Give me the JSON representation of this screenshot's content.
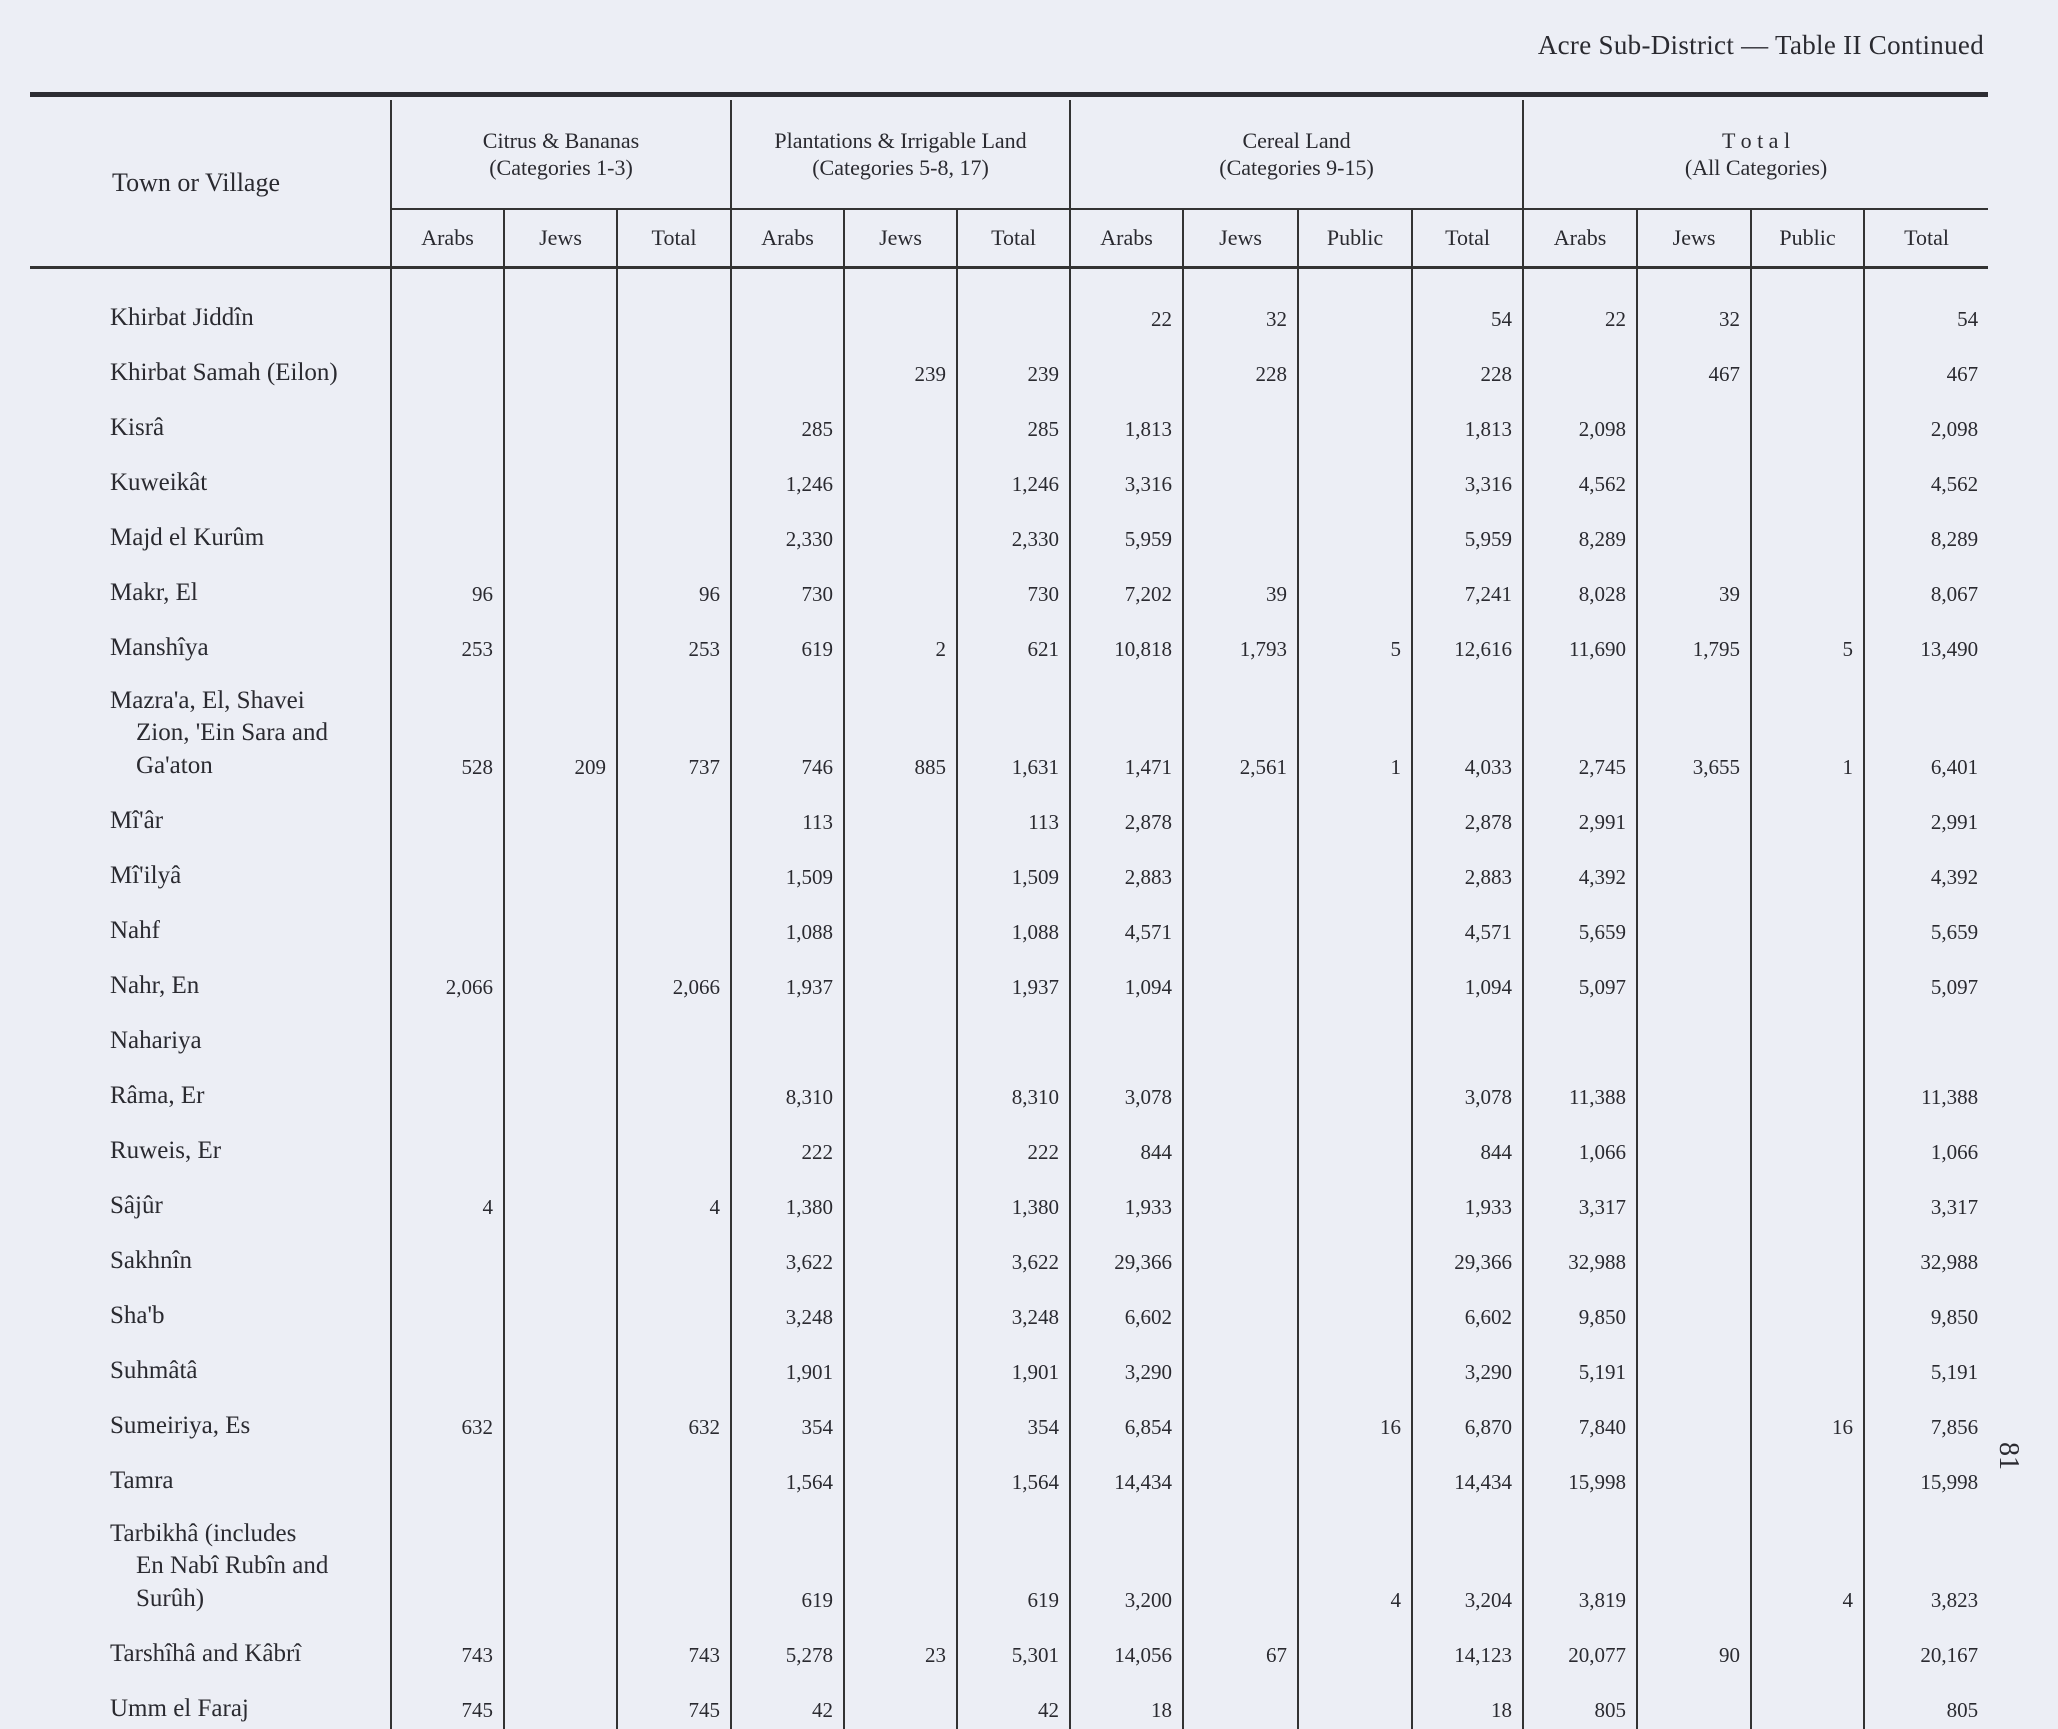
{
  "running_head": "Acre Sub-District — Table II Continued",
  "page_number": "81",
  "header": {
    "first_column": "Town or Village",
    "groups": [
      {
        "title": "Citrus & Bananas",
        "subtitle": "(Categories 1-3)",
        "columns": [
          "Arabs",
          "Jews",
          "Total"
        ]
      },
      {
        "title": "Plantations & Irrigable Land",
        "subtitle": "(Categories 5-8, 17)",
        "columns": [
          "Arabs",
          "Jews",
          "Total"
        ]
      },
      {
        "title": "Cereal Land",
        "subtitle": "(Categories 9-15)",
        "columns": [
          "Arabs",
          "Jews",
          "Public",
          "Total"
        ]
      },
      {
        "title": "T o t a l",
        "subtitle": "(All Categories)",
        "columns": [
          "Arabs",
          "Jews",
          "Public",
          "Total"
        ]
      }
    ]
  },
  "rows": [
    {
      "name": [
        "Khirbat Jiddîn"
      ],
      "values": [
        "",
        "",
        "",
        "",
        "",
        "",
        "22",
        "32",
        "",
        "54",
        "22",
        "32",
        "",
        "54"
      ]
    },
    {
      "name": [
        "Khirbat Samah (Eilon)"
      ],
      "values": [
        "",
        "",
        "",
        "",
        "239",
        "239",
        "",
        "228",
        "",
        "228",
        "",
        "467",
        "",
        "467"
      ]
    },
    {
      "name": [
        "Kisrâ"
      ],
      "values": [
        "",
        "",
        "",
        "285",
        "",
        "285",
        "1,813",
        "",
        "",
        "1,813",
        "2,098",
        "",
        "",
        "2,098"
      ]
    },
    {
      "name": [
        "Kuweikât"
      ],
      "values": [
        "",
        "",
        "",
        "1,246",
        "",
        "1,246",
        "3,316",
        "",
        "",
        "3,316",
        "4,562",
        "",
        "",
        "4,562"
      ]
    },
    {
      "name": [
        "Majd el Kurûm"
      ],
      "values": [
        "",
        "",
        "",
        "2,330",
        "",
        "2,330",
        "5,959",
        "",
        "",
        "5,959",
        "8,289",
        "",
        "",
        "8,289"
      ]
    },
    {
      "name": [
        "Makr, El"
      ],
      "values": [
        "96",
        "",
        "96",
        "730",
        "",
        "730",
        "7,202",
        "39",
        "",
        "7,241",
        "8,028",
        "39",
        "",
        "8,067"
      ]
    },
    {
      "name": [
        "Manshîya"
      ],
      "values": [
        "253",
        "",
        "253",
        "619",
        "2",
        "621",
        "10,818",
        "1,793",
        "5",
        "12,616",
        "11,690",
        "1,795",
        "5",
        "13,490"
      ]
    },
    {
      "name": [
        "Mazra'a, El, Shavei",
        "Zion, 'Ein Sara and",
        "Ga'aton"
      ],
      "values": [
        "528",
        "209",
        "737",
        "746",
        "885",
        "1,631",
        "1,471",
        "2,561",
        "1",
        "4,033",
        "2,745",
        "3,655",
        "1",
        "6,401"
      ]
    },
    {
      "name": [
        "Mî'âr"
      ],
      "values": [
        "",
        "",
        "",
        "113",
        "",
        "113",
        "2,878",
        "",
        "",
        "2,878",
        "2,991",
        "",
        "",
        "2,991"
      ]
    },
    {
      "name": [
        "Mî'ilyâ"
      ],
      "values": [
        "",
        "",
        "",
        "1,509",
        "",
        "1,509",
        "2,883",
        "",
        "",
        "2,883",
        "4,392",
        "",
        "",
        "4,392"
      ]
    },
    {
      "name": [
        "Nahf"
      ],
      "values": [
        "",
        "",
        "",
        "1,088",
        "",
        "1,088",
        "4,571",
        "",
        "",
        "4,571",
        "5,659",
        "",
        "",
        "5,659"
      ]
    },
    {
      "name": [
        "Nahr, En"
      ],
      "values": [
        "2,066",
        "",
        "2,066",
        "1,937",
        "",
        "1,937",
        "1,094",
        "",
        "",
        "1,094",
        "5,097",
        "",
        "",
        "5,097"
      ]
    },
    {
      "name": [
        "Nahariya"
      ],
      "values": [
        "",
        "",
        "",
        "",
        "",
        "",
        "",
        "",
        "",
        "",
        "",
        "",
        "",
        ""
      ]
    },
    {
      "name": [
        "Râma, Er"
      ],
      "values": [
        "",
        "",
        "",
        "8,310",
        "",
        "8,310",
        "3,078",
        "",
        "",
        "3,078",
        "11,388",
        "",
        "",
        "11,388"
      ]
    },
    {
      "name": [
        "Ruweis, Er"
      ],
      "values": [
        "",
        "",
        "",
        "222",
        "",
        "222",
        "844",
        "",
        "",
        "844",
        "1,066",
        "",
        "",
        "1,066"
      ]
    },
    {
      "name": [
        "Sâjûr"
      ],
      "values": [
        "4",
        "",
        "4",
        "1,380",
        "",
        "1,380",
        "1,933",
        "",
        "",
        "1,933",
        "3,317",
        "",
        "",
        "3,317"
      ]
    },
    {
      "name": [
        "Sakhnîn"
      ],
      "values": [
        "",
        "",
        "",
        "3,622",
        "",
        "3,622",
        "29,366",
        "",
        "",
        "29,366",
        "32,988",
        "",
        "",
        "32,988"
      ]
    },
    {
      "name": [
        "Sha'b"
      ],
      "values": [
        "",
        "",
        "",
        "3,248",
        "",
        "3,248",
        "6,602",
        "",
        "",
        "6,602",
        "9,850",
        "",
        "",
        "9,850"
      ]
    },
    {
      "name": [
        "Suhmâtâ"
      ],
      "values": [
        "",
        "",
        "",
        "1,901",
        "",
        "1,901",
        "3,290",
        "",
        "",
        "3,290",
        "5,191",
        "",
        "",
        "5,191"
      ]
    },
    {
      "name": [
        "Sumeiriya, Es"
      ],
      "values": [
        "632",
        "",
        "632",
        "354",
        "",
        "354",
        "6,854",
        "",
        "16",
        "6,870",
        "7,840",
        "",
        "16",
        "7,856"
      ]
    },
    {
      "name": [
        "Tamra"
      ],
      "values": [
        "",
        "",
        "",
        "1,564",
        "",
        "1,564",
        "14,434",
        "",
        "",
        "14,434",
        "15,998",
        "",
        "",
        "15,998"
      ]
    },
    {
      "name": [
        "Tarbikhâ (includes",
        "En Nabî Rubîn and",
        "Surûh)"
      ],
      "values": [
        "",
        "",
        "",
        "619",
        "",
        "619",
        "3,200",
        "",
        "4",
        "3,204",
        "3,819",
        "",
        "4",
        "3,823"
      ]
    },
    {
      "name": [
        "Tarshîhâ and Kâbrî"
      ],
      "values": [
        "743",
        "",
        "743",
        "5,278",
        "23",
        "5,301",
        "14,056",
        "67",
        "",
        "14,123",
        "20,077",
        "90",
        "",
        "20,167"
      ]
    },
    {
      "name": [
        "Umm el Faraj"
      ],
      "values": [
        "745",
        "",
        "745",
        "42",
        "",
        "42",
        "18",
        "",
        "",
        "18",
        "805",
        "",
        "",
        "805"
      ]
    }
  ]
}
